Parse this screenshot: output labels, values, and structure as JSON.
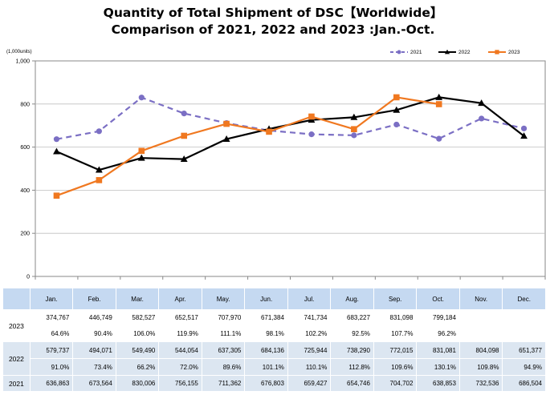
{
  "title": {
    "line1": "Quantity of Total Shipment of DSC【Worldwide】",
    "line2": "Comparison of 2021, 2022 and 2023 :Jan.-Oct."
  },
  "chart_data": {
    "type": "line",
    "unit_label": "(1,000units)",
    "categories": [
      "Jan.",
      "Feb.",
      "Mar.",
      "Apr.",
      "May.",
      "Jun.",
      "Jul.",
      "Aug.",
      "Sep.",
      "Oct.",
      "Nov.",
      "Dec."
    ],
    "ylim": [
      0,
      1000
    ],
    "yticks": [
      0,
      200,
      400,
      600,
      800,
      1000
    ],
    "ytick_labels": [
      "0",
      "200",
      "400",
      "600",
      "800",
      "1,000"
    ],
    "series": [
      {
        "name": "2021",
        "color": "#7b6fc4",
        "style": "dashed",
        "marker": "circle",
        "values": [
          636.863,
          673.564,
          830.006,
          756.155,
          711.362,
          676.803,
          659.427,
          654.746,
          704.702,
          638.853,
          732.536,
          686.504
        ]
      },
      {
        "name": "2022",
        "color": "#000000",
        "style": "solid",
        "marker": "triangle",
        "values": [
          579.737,
          494.071,
          549.49,
          544.054,
          637.305,
          684.136,
          725.944,
          738.29,
          772.015,
          831.081,
          804.098,
          651.377
        ]
      },
      {
        "name": "2023",
        "color": "#f07820",
        "style": "solid",
        "marker": "square",
        "values": [
          374.767,
          446.749,
          582.527,
          652.517,
          707.97,
          671.384,
          741.734,
          683.227,
          831.098,
          799.184,
          null,
          null
        ]
      }
    ]
  },
  "table": {
    "months": [
      "Jan.",
      "Feb.",
      "Mar.",
      "Apr.",
      "May.",
      "Jun.",
      "Jul.",
      "Aug.",
      "Sep.",
      "Oct.",
      "Nov.",
      "Dec."
    ],
    "rows": [
      {
        "year": "2023",
        "units": [
          "374,767",
          "446,749",
          "582,527",
          "652,517",
          "707,970",
          "671,384",
          "741,734",
          "683,227",
          "831,098",
          "799,184",
          "",
          ""
        ],
        "yoy": [
          "64.6%",
          "90.4%",
          "106.0%",
          "119.9%",
          "111.1%",
          "98.1%",
          "102.2%",
          "92.5%",
          "107.7%",
          "96.2%",
          "",
          ""
        ]
      },
      {
        "year": "2022",
        "units": [
          "579,737",
          "494,071",
          "549,490",
          "544,054",
          "637,305",
          "684,136",
          "725,944",
          "738,290",
          "772,015",
          "831,081",
          "804,098",
          "651,377"
        ],
        "yoy": [
          "91.0%",
          "73.4%",
          "66.2%",
          "72.0%",
          "89.6%",
          "101.1%",
          "110.1%",
          "112.8%",
          "109.6%",
          "130.1%",
          "109.8%",
          "94.9%"
        ]
      },
      {
        "year": "2021",
        "units": [
          "636,863",
          "673,564",
          "830,006",
          "756,155",
          "711,362",
          "676,803",
          "659,427",
          "654,746",
          "704,702",
          "638,853",
          "732,536",
          "686,504"
        ]
      }
    ]
  }
}
